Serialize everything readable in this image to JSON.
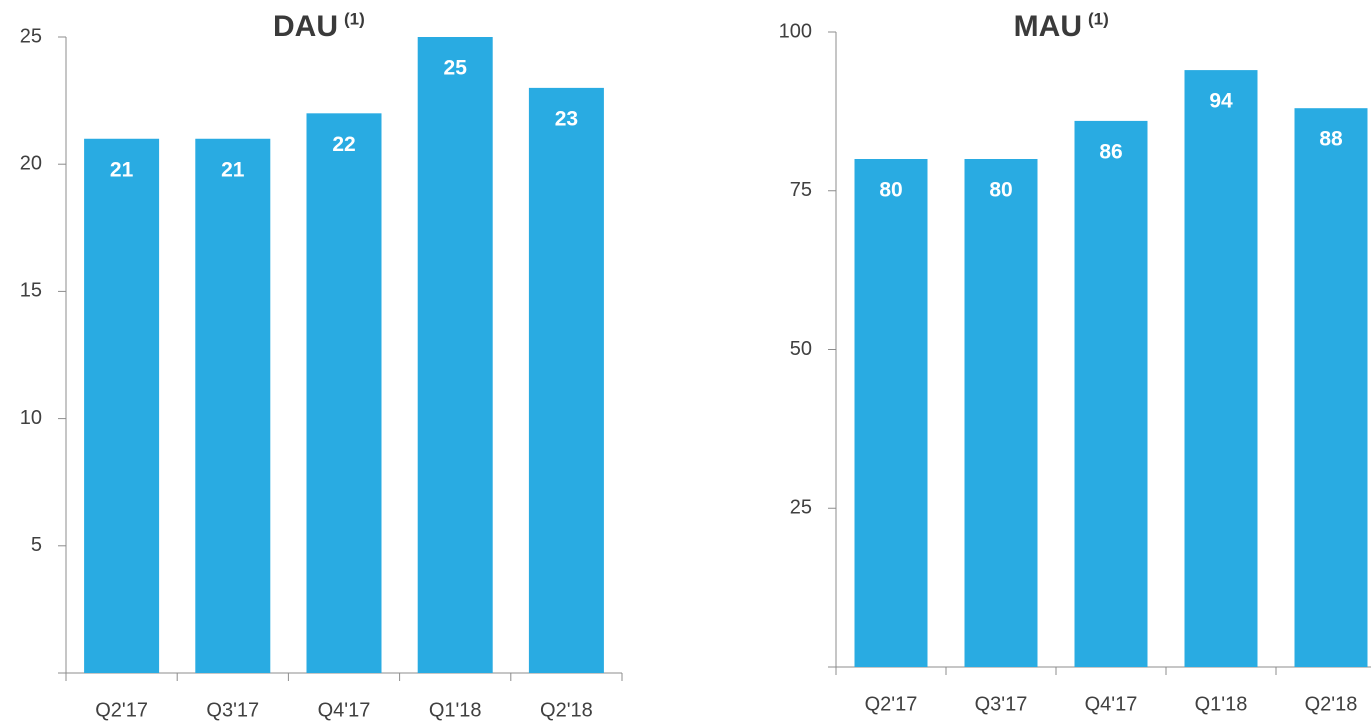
{
  "chart_data": [
    {
      "type": "bar",
      "title": "DAU",
      "title_superscript": "(1)",
      "categories": [
        "Q2'17",
        "Q3'17",
        "Q4'17",
        "Q1'18",
        "Q2'18"
      ],
      "values": [
        21,
        21,
        22,
        25,
        23
      ],
      "color": "#29abe2",
      "ylim": [
        0,
        25
      ],
      "yticks": [
        5,
        10,
        15,
        20,
        25
      ],
      "grid": false
    },
    {
      "type": "bar",
      "title": "MAU",
      "title_superscript": "(1)",
      "categories": [
        "Q2'17",
        "Q3'17",
        "Q4'17",
        "Q1'18",
        "Q2'18"
      ],
      "values": [
        80,
        80,
        86,
        94,
        88
      ],
      "color": "#29abe2",
      "ylim": [
        0,
        100
      ],
      "yticks": [
        25,
        50,
        75,
        100
      ],
      "grid": false
    }
  ]
}
